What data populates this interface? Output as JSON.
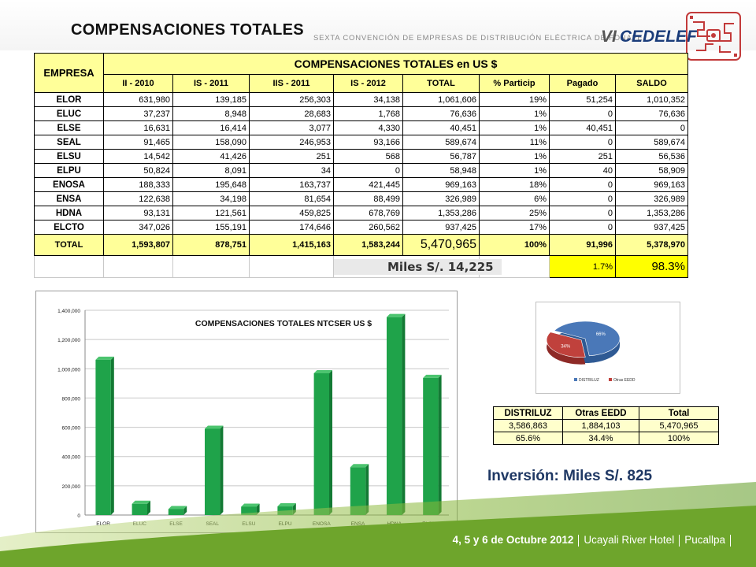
{
  "header": {
    "title": "COMPENSACIONES TOTALES",
    "conv_text": "SEXTA CONVENCIÓN DE EMPRESAS DE DISTRIBUCIÓN ELÉCTRICA DE FONAFE",
    "brand_prefix": "VI",
    "brand": "CEDELEF"
  },
  "main_table": {
    "company_header": "EMPRESA",
    "group_header": "COMPENSACIONES TOTALES en US $",
    "columns": [
      "II - 2010",
      "IS - 2011",
      "IIS - 2011",
      "IS - 2012",
      "TOTAL",
      "% Particip",
      "Pagado",
      "SALDO"
    ],
    "rows": [
      [
        "ELOR",
        "631,980",
        "139,185",
        "256,303",
        "34,138",
        "1,061,606",
        "19%",
        "51,254",
        "1,010,352"
      ],
      [
        "ELUC",
        "37,237",
        "8,948",
        "28,683",
        "1,768",
        "76,636",
        "1%",
        "0",
        "76,636"
      ],
      [
        "ELSE",
        "16,631",
        "16,414",
        "3,077",
        "4,330",
        "40,451",
        "1%",
        "40,451",
        "0"
      ],
      [
        "SEAL",
        "91,465",
        "158,090",
        "246,953",
        "93,166",
        "589,674",
        "11%",
        "0",
        "589,674"
      ],
      [
        "ELSU",
        "14,542",
        "41,426",
        "251",
        "568",
        "56,787",
        "1%",
        "251",
        "56,536"
      ],
      [
        "ELPU",
        "50,824",
        "8,091",
        "34",
        "0",
        "58,948",
        "1%",
        "40",
        "58,909"
      ],
      [
        "ENOSA",
        "188,333",
        "195,648",
        "163,737",
        "421,445",
        "969,163",
        "18%",
        "0",
        "969,163"
      ],
      [
        "ENSA",
        "122,638",
        "34,198",
        "81,654",
        "88,499",
        "326,989",
        "6%",
        "0",
        "326,989"
      ],
      [
        "HDNA",
        "93,131",
        "121,561",
        "459,825",
        "678,769",
        "1,353,286",
        "25%",
        "0",
        "1,353,286"
      ],
      [
        "ELCTO",
        "347,026",
        "155,191",
        "174,646",
        "260,562",
        "937,425",
        "17%",
        "0",
        "937,425"
      ]
    ],
    "total_row": [
      "TOTAL",
      "1,593,807",
      "878,751",
      "1,415,163",
      "1,583,244",
      "5,470,965",
      "100%",
      "91,996",
      "5,378,970"
    ],
    "miles_note": "Miles S/. 14,225",
    "paid_pct": "1.7%",
    "balance_pct": "98.3%"
  },
  "chart_data": {
    "type": "bar",
    "title": "COMPENSACIONES TOTALES NTCSER US $",
    "categories": [
      "ELOR",
      "ELUC",
      "ELSE",
      "SEAL",
      "ELSU",
      "ELPU",
      "ENOSA",
      "ENSA",
      "HDNA",
      "ELCTO"
    ],
    "values": [
      1061606,
      76636,
      40451,
      589674,
      56787,
      58948,
      969163,
      326989,
      1353286,
      937425
    ],
    "ylim": [
      0,
      1400000
    ],
    "yticks": [
      "0",
      "200,000",
      "400,000",
      "600,000",
      "800,000",
      "1,000,000",
      "1,200,000",
      "1,400,000"
    ],
    "grid": true,
    "color": "#1fa34a"
  },
  "pie_chart": {
    "type": "pie",
    "slices": [
      {
        "label": "DISTRILUZ",
        "pct_label": "66%",
        "value": 65.6,
        "color": "#4a78b8"
      },
      {
        "label": "Otras EEDD",
        "pct_label": "34%",
        "value": 34.4,
        "color": "#c0413c"
      }
    ]
  },
  "small_table": {
    "headers": [
      "DISTRILUZ",
      "Otras EEDD",
      "Total"
    ],
    "amounts": [
      "3,586,863",
      "1,884,103",
      "5,470,965"
    ],
    "percents": [
      "65.6%",
      "34.4%",
      "100%"
    ]
  },
  "inversion": "Inversión: Miles S/. 825",
  "footer": {
    "dates": "4, 5 y 6 de Octubre 2012",
    "venue": "Ucayali River Hotel",
    "city": "Pucallpa"
  }
}
